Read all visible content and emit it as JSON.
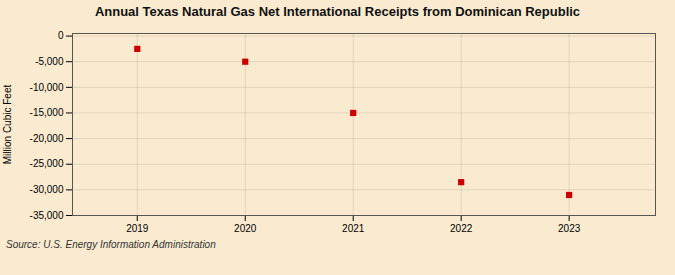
{
  "chart_data": {
    "type": "scatter",
    "title": "Annual Texas Natural Gas Net International Receipts from Dominican Republic",
    "ylabel": "Million Cubic Feet",
    "source": "Source: U.S. Energy Information Administration",
    "x": [
      2019,
      2020,
      2021,
      2022,
      2023
    ],
    "values": [
      -2500,
      -5000,
      -15000,
      -28500,
      -31000
    ],
    "color": "#cc0000",
    "marker": "square",
    "xlim": [
      2018.4,
      2023.8
    ],
    "ylim": [
      -35000,
      500
    ],
    "xticks": [
      2019,
      2020,
      2021,
      2022,
      2023
    ],
    "yticks": [
      0,
      {
        "value": -5000,
        "label": "-5,000"
      },
      {
        "value": -10000,
        "label": "-10,000"
      },
      {
        "value": -15000,
        "label": "-15,000"
      },
      {
        "value": -20000,
        "label": "-20,000"
      },
      {
        "value": -25000,
        "label": "-25,000"
      },
      {
        "value": -30000,
        "label": "-30,000"
      },
      {
        "value": -35000,
        "label": "-35,000"
      }
    ],
    "grid": true
  }
}
